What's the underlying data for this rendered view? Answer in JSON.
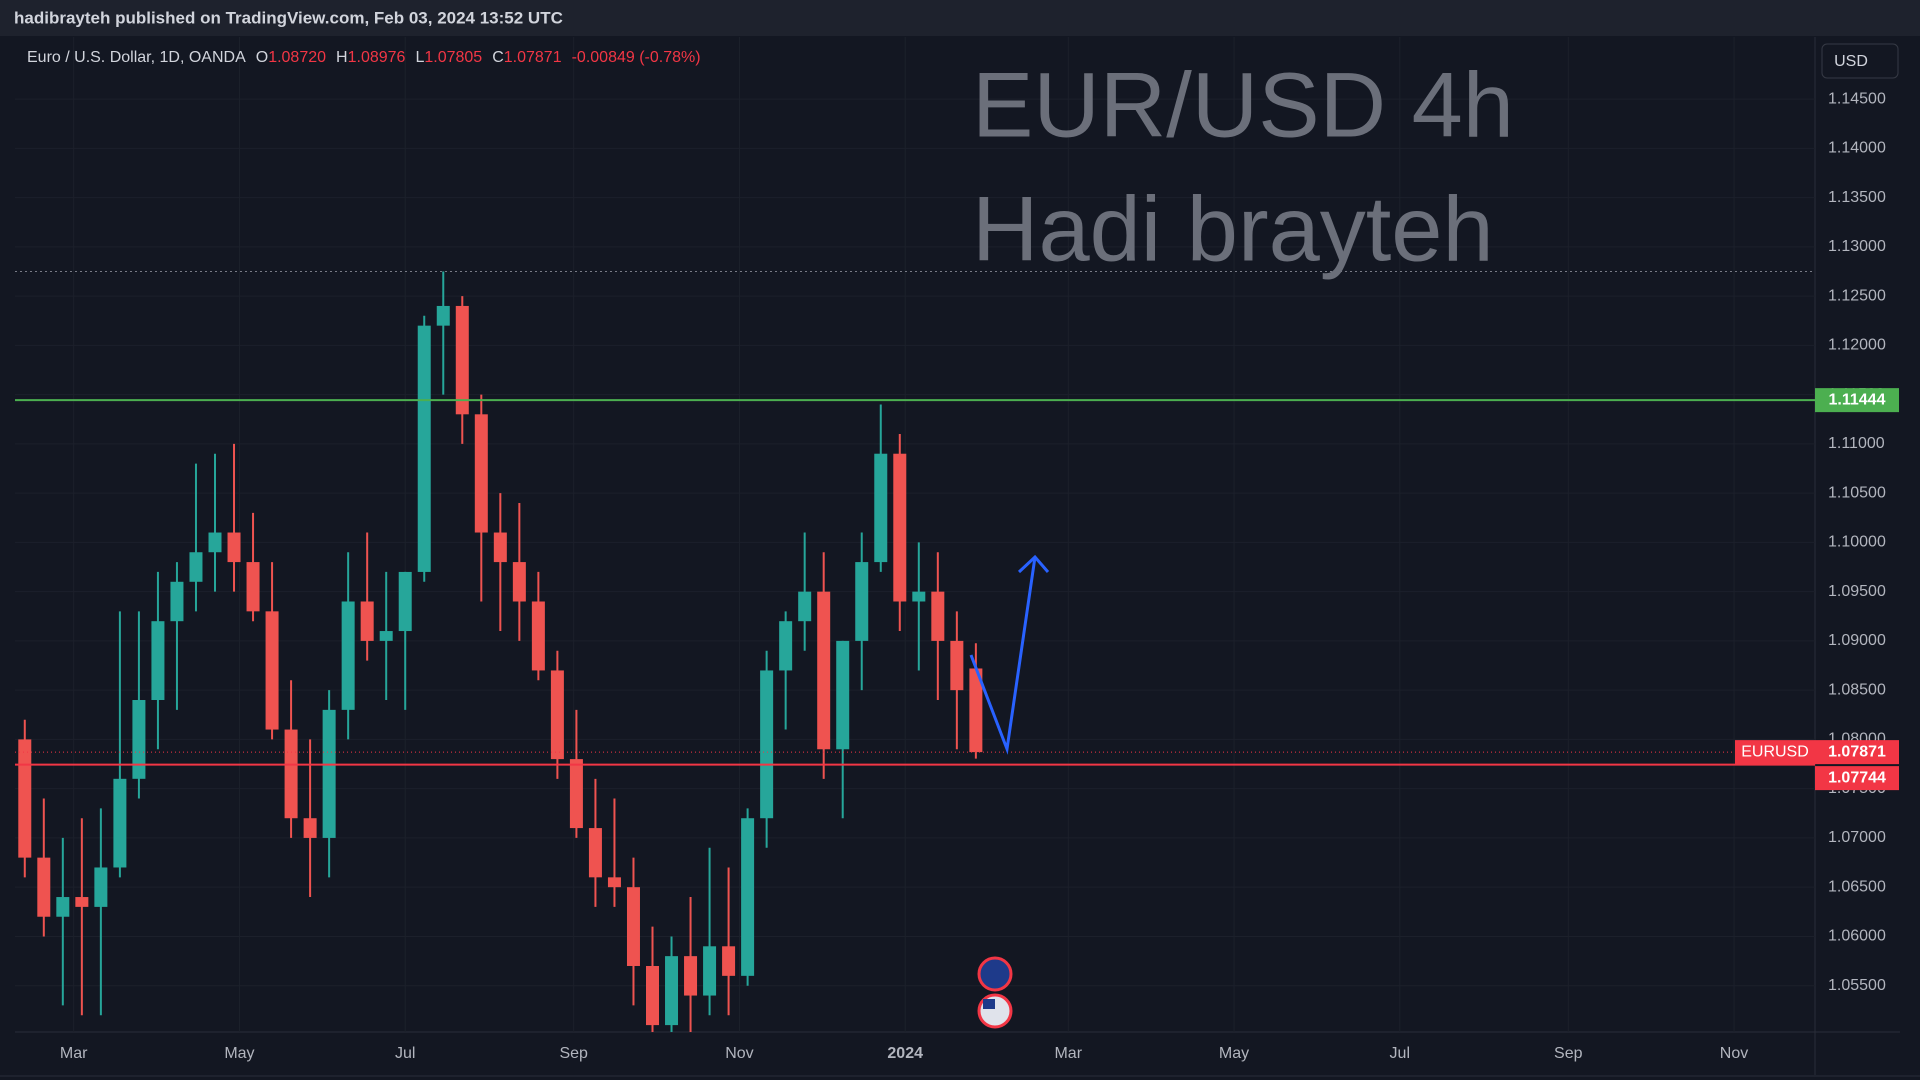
{
  "header": {
    "published": "hadibrayteh published on TradingView.com, Feb 03, 2024 13:52 UTC",
    "currency_button": "USD"
  },
  "legend": {
    "symbol": "Euro / U.S. Dollar, 1D, OANDA",
    "ohlc": [
      {
        "key": "O",
        "value": "1.08720"
      },
      {
        "key": "H",
        "value": "1.08976"
      },
      {
        "key": "L",
        "value": "1.07805"
      },
      {
        "key": "C",
        "value": "1.07871"
      }
    ],
    "change": "-0.00849 (-0.78%)"
  },
  "chart_data": {
    "type": "candlestick",
    "annotations": [
      "EUR/USD 4h",
      "Hadi brayteh"
    ],
    "x": [
      -18,
      -11,
      -4,
      3,
      10,
      17,
      24,
      31,
      38,
      45,
      52,
      59,
      66,
      73,
      80,
      87,
      94,
      101,
      108,
      115,
      122,
      129,
      136,
      143,
      150,
      157,
      164,
      171,
      178,
      185,
      192,
      199,
      206,
      213,
      220,
      227,
      234,
      241,
      248,
      255,
      262,
      269,
      276,
      283,
      290,
      297,
      304,
      311,
      318,
      325,
      332
    ],
    "open": [
      1.08,
      1.068,
      1.062,
      1.064,
      1.063,
      1.067,
      1.076,
      1.084,
      1.092,
      1.096,
      1.099,
      1.101,
      1.098,
      1.093,
      1.081,
      1.072,
      1.07,
      1.083,
      1.094,
      1.09,
      1.091,
      1.097,
      1.122,
      1.124,
      1.113,
      1.101,
      1.098,
      1.094,
      1.087,
      1.078,
      1.071,
      1.066,
      1.065,
      1.057,
      1.051,
      1.058,
      1.054,
      1.059,
      1.056,
      1.072,
      1.087,
      1.092,
      1.095,
      1.079,
      1.09,
      1.098,
      1.109,
      1.094,
      1.095,
      1.09,
      1.0872
    ],
    "high": [
      1.082,
      1.074,
      1.07,
      1.072,
      1.073,
      1.093,
      1.093,
      1.097,
      1.098,
      1.108,
      1.109,
      1.11,
      1.103,
      1.098,
      1.086,
      1.08,
      1.085,
      1.099,
      1.101,
      1.097,
      1.097,
      1.123,
      1.1275,
      1.125,
      1.115,
      1.105,
      1.104,
      1.097,
      1.089,
      1.083,
      1.076,
      1.074,
      1.068,
      1.061,
      1.06,
      1.064,
      1.069,
      1.067,
      1.073,
      1.089,
      1.093,
      1.101,
      1.099,
      1.09,
      1.101,
      1.114,
      1.111,
      1.1,
      1.099,
      1.093,
      1.08976
    ],
    "low": [
      1.066,
      1.06,
      1.053,
      1.052,
      1.052,
      1.066,
      1.074,
      1.079,
      1.083,
      1.093,
      1.095,
      1.095,
      1.092,
      1.08,
      1.07,
      1.064,
      1.066,
      1.08,
      1.088,
      1.084,
      1.083,
      1.096,
      1.115,
      1.11,
      1.094,
      1.091,
      1.09,
      1.086,
      1.076,
      1.07,
      1.063,
      1.063,
      1.053,
      1.045,
      1.048,
      1.05,
      1.052,
      1.052,
      1.055,
      1.069,
      1.081,
      1.089,
      1.076,
      1.072,
      1.085,
      1.097,
      1.091,
      1.087,
      1.084,
      1.079,
      1.07805
    ],
    "close": [
      1.068,
      1.062,
      1.064,
      1.063,
      1.067,
      1.076,
      1.084,
      1.092,
      1.096,
      1.099,
      1.101,
      1.098,
      1.093,
      1.081,
      1.072,
      1.07,
      1.083,
      1.094,
      1.09,
      1.091,
      1.097,
      1.122,
      1.124,
      1.113,
      1.101,
      1.098,
      1.094,
      1.087,
      1.078,
      1.071,
      1.066,
      1.065,
      1.057,
      1.051,
      1.058,
      1.054,
      1.059,
      1.056,
      1.072,
      1.087,
      1.092,
      1.095,
      1.079,
      1.09,
      1.098,
      1.109,
      1.094,
      1.095,
      1.09,
      1.085,
      1.07871
    ],
    "up_color": "#26a69a",
    "down_color": "#ef5350",
    "xlim": [
      -21.6,
      640.8
    ],
    "xticks": [
      {
        "value": 0,
        "label": "Mar"
      },
      {
        "value": 61,
        "label": "May"
      },
      {
        "value": 122,
        "label": "Jul"
      },
      {
        "value": 184,
        "label": "Sep"
      },
      {
        "value": 245,
        "label": "Nov"
      },
      {
        "value": 306,
        "label": "2024"
      },
      {
        "value": 366,
        "label": "Mar"
      },
      {
        "value": 427,
        "label": "May"
      },
      {
        "value": 488,
        "label": "Jul"
      },
      {
        "value": 550,
        "label": "Sep"
      },
      {
        "value": 611,
        "label": "Nov"
      }
    ],
    "ylim": [
      1.0503,
      1.1513
    ],
    "yticks": [
      {
        "value": 1.055,
        "label": "1.05500"
      },
      {
        "value": 1.06,
        "label": "1.06000"
      },
      {
        "value": 1.065,
        "label": "1.06500"
      },
      {
        "value": 1.07,
        "label": "1.07000"
      },
      {
        "value": 1.075,
        "label": "1.07500"
      },
      {
        "value": 1.08,
        "label": "1.08000"
      },
      {
        "value": 1.085,
        "label": "1.08500"
      },
      {
        "value": 1.09,
        "label": "1.09000"
      },
      {
        "value": 1.095,
        "label": "1.09500"
      },
      {
        "value": 1.1,
        "label": "1.10000"
      },
      {
        "value": 1.105,
        "label": "1.10500"
      },
      {
        "value": 1.11,
        "label": "1.11000"
      },
      {
        "value": 1.115,
        "label": "1.11500"
      },
      {
        "value": 1.12,
        "label": "1.12000"
      },
      {
        "value": 1.125,
        "label": "1.12500"
      },
      {
        "value": 1.13,
        "label": "1.13000"
      },
      {
        "value": 1.135,
        "label": "1.13500"
      },
      {
        "value": 1.14,
        "label": "1.14000"
      },
      {
        "value": 1.145,
        "label": "1.14500"
      }
    ],
    "grid": true,
    "levels": [
      {
        "value": 1.11444,
        "label": "1.11444",
        "color": "#4caf50"
      },
      {
        "value": 1.07744,
        "label": "1.07744",
        "color": "#f23645"
      }
    ],
    "high_line": 1.1275,
    "last_price": {
      "name": "EURUSD",
      "value": 1.07871,
      "label": "1.07871",
      "color": "#f23645"
    }
  }
}
